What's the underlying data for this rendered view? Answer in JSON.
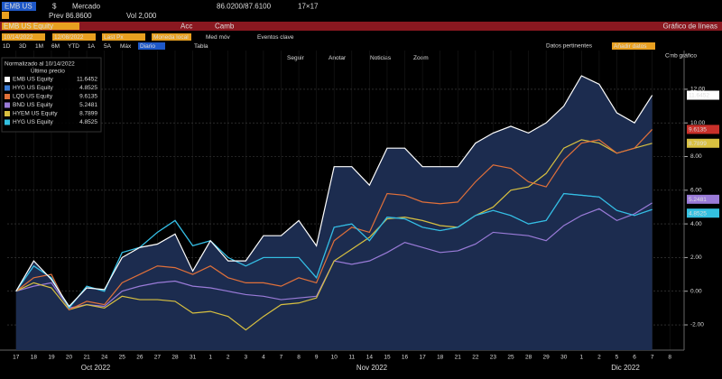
{
  "header": {
    "ticker": "EMB US",
    "currency": "$",
    "market": "Mercado",
    "range": "86.0200/87.6100",
    "size": "17×17",
    "prev": "Prev 86.8600",
    "vol": "Vol 2,000"
  },
  "title_bar": {
    "security": "EMB US Equity",
    "acc": "Acc",
    "camb": "Camb",
    "chart_type": "Gráfico de líneas"
  },
  "toolbar": {
    "start": "10/14/2022",
    "end": "12/08/2022",
    "field": "Last Px",
    "currency": "Moneda local",
    "moving_avg": "Med móv",
    "events": "Eventos clave",
    "data": "Datos pertinentes",
    "add": "Añadir datos"
  },
  "periods": [
    "1D",
    "3D",
    "1M",
    "6M",
    "YTD",
    "1A",
    "5A",
    "Máx",
    "Diario",
    "Tabla"
  ],
  "chart_tools": [
    "Seguir",
    "Anotar",
    "Noticias",
    "Zoom",
    "Cmb gráfico"
  ],
  "chart_data": {
    "type": "line",
    "legend_title": "Normalizado al 10/14/2022",
    "legend_subtitle": "Último precio",
    "months": [
      "Oct 2022",
      "Nov 2022",
      "Dic 2022"
    ],
    "categories": [
      "17",
      "18",
      "19",
      "20",
      "21",
      "24",
      "25",
      "26",
      "27",
      "28",
      "31",
      "1",
      "2",
      "3",
      "4",
      "7",
      "8",
      "9",
      "10",
      "11",
      "14",
      "15",
      "16",
      "17",
      "18",
      "21",
      "22",
      "23",
      "25",
      "28",
      "29",
      "30",
      "1",
      "2",
      "5",
      "6",
      "7",
      "8"
    ],
    "ylim": [
      -3.5,
      14.3
    ],
    "yticks": [
      {
        "value": -2,
        "label": "-2.00"
      },
      {
        "value": 0,
        "label": "0.00"
      },
      {
        "value": 2,
        "label": "2.00"
      },
      {
        "value": 4,
        "label": "4.00"
      },
      {
        "value": 6,
        "label": "6.00"
      },
      {
        "value": 8,
        "label": "8.00"
      },
      {
        "value": 10,
        "label": "10.00"
      },
      {
        "value": 12,
        "label": "12.00"
      }
    ],
    "grid": true,
    "area_fill": "#1c2c4f",
    "series": [
      {
        "name": "EMB US Equity",
        "color": "#ffffff",
        "values": [
          0,
          1.8,
          0.7,
          -0.9,
          0.2,
          0.1,
          2.0,
          2.6,
          2.8,
          3.4,
          1.2,
          3.0,
          1.8,
          1.8,
          3.3,
          3.3,
          4.2,
          2.7,
          7.4,
          7.4,
          6.3,
          8.5,
          8.5,
          7.4,
          7.4,
          7.4,
          8.8,
          9.4,
          9.8,
          9.4,
          10.0,
          11.0,
          12.8,
          12.3,
          10.6,
          10.0,
          11.6452,
          null
        ]
      },
      {
        "name": "HYG US Equity",
        "color": "#3a7bd5",
        "values": [
          0,
          1.5,
          0.8,
          -1.0,
          0.3,
          0.0,
          2.3,
          2.6,
          3.5,
          4.2,
          2.7,
          3.0,
          2.0,
          1.5,
          2.0,
          2.0,
          2.0,
          0.8,
          3.8,
          4.0,
          3.0,
          4.4,
          4.3,
          3.8,
          3.6,
          3.8,
          4.5,
          4.8,
          4.5,
          4.0,
          4.2,
          5.8,
          5.7,
          5.6,
          4.8,
          4.5,
          4.8525,
          null
        ]
      },
      {
        "name": "LQD US Equity",
        "color": "#e0703a",
        "values": [
          0,
          0.8,
          1.0,
          -1.1,
          -0.6,
          -0.8,
          0.5,
          1.0,
          1.5,
          1.4,
          1.0,
          1.5,
          0.8,
          0.5,
          0.5,
          0.3,
          0.8,
          0.5,
          3.0,
          3.8,
          3.5,
          5.8,
          5.7,
          5.3,
          5.2,
          5.3,
          6.5,
          7.5,
          7.3,
          6.5,
          6.2,
          7.8,
          8.8,
          9.0,
          8.2,
          8.5,
          9.6135,
          null
        ]
      },
      {
        "name": "BND US Equity",
        "color": "#9a7bd8",
        "values": [
          0,
          0.3,
          0.5,
          -1.0,
          -0.8,
          -0.9,
          0.0,
          0.3,
          0.5,
          0.6,
          0.3,
          0.2,
          0.0,
          -0.2,
          -0.3,
          -0.5,
          -0.4,
          -0.3,
          1.8,
          1.6,
          1.8,
          2.3,
          2.9,
          2.6,
          2.3,
          2.4,
          2.8,
          3.5,
          3.4,
          3.3,
          3.0,
          3.9,
          4.5,
          4.9,
          4.2,
          4.6,
          5.2481,
          null
        ]
      },
      {
        "name": "HYEM US Equity",
        "color": "#d8c040",
        "values": [
          0,
          0.5,
          0.2,
          -1.1,
          -0.8,
          -1.0,
          -0.3,
          -0.5,
          -0.5,
          -0.6,
          -1.3,
          -1.2,
          -1.5,
          -2.3,
          -1.5,
          -0.8,
          -0.7,
          -0.4,
          1.8,
          2.5,
          3.2,
          4.3,
          4.4,
          4.2,
          3.9,
          3.8,
          4.5,
          5.0,
          6.0,
          6.2,
          7.0,
          8.5,
          9.0,
          8.8,
          8.2,
          8.5,
          8.7899,
          null
        ]
      },
      {
        "name": "HYG US Equity",
        "color": "#33c0e0",
        "values": [
          0,
          1.5,
          0.8,
          -1.0,
          0.3,
          0.0,
          2.3,
          2.6,
          3.5,
          4.2,
          2.7,
          3.0,
          2.0,
          1.5,
          2.0,
          2.0,
          2.0,
          0.8,
          3.8,
          4.0,
          3.0,
          4.4,
          4.3,
          3.8,
          3.6,
          3.8,
          4.5,
          4.8,
          4.5,
          4.0,
          4.2,
          5.8,
          5.7,
          5.6,
          4.8,
          4.5,
          4.8525,
          null
        ]
      }
    ]
  }
}
